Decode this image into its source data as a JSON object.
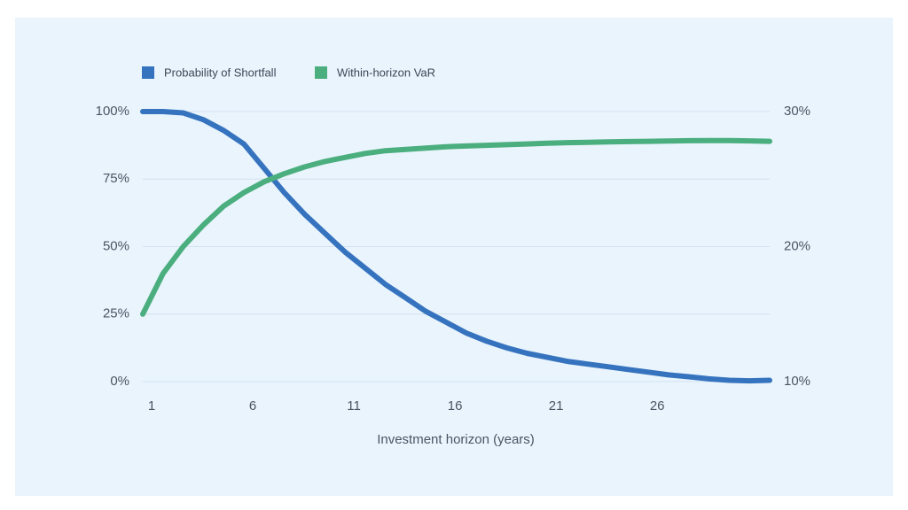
{
  "chart_data": {
    "type": "line",
    "x_label": "Investment horizon (years)",
    "x": [
      1,
      2,
      3,
      4,
      5,
      6,
      7,
      8,
      9,
      10,
      11,
      12,
      13,
      14,
      15,
      16,
      17,
      18,
      19,
      20,
      21,
      22,
      23,
      24,
      25,
      26,
      27,
      28,
      29,
      30,
      31,
      32
    ],
    "xlim": [
      1,
      32
    ],
    "xticks": [
      1,
      6,
      11,
      16,
      21,
      26
    ],
    "ylim": [
      0,
      100
    ],
    "yticks": [
      {
        "value": 0,
        "label": "0%"
      },
      {
        "value": 25,
        "label": "25%"
      },
      {
        "value": 50,
        "label": "50%"
      },
      {
        "value": 75,
        "label": "75%"
      },
      {
        "value": 100,
        "label": "100%"
      }
    ],
    "y2lim": [
      10,
      30
    ],
    "y2ticks": [
      {
        "value": 10,
        "label": "10%"
      },
      {
        "value": 20,
        "label": "20%"
      },
      {
        "value": 30,
        "label": "30%"
      }
    ],
    "grid": true,
    "legend": "top-left",
    "series": [
      {
        "name": "Probability of Shortfall",
        "color": "#3673be",
        "values": [
          100,
          100,
          99.5,
          97,
          93,
          88,
          79,
          70,
          62,
          55,
          48,
          42,
          36,
          31,
          26,
          22,
          18,
          15,
          12.5,
          10.5,
          9,
          7.5,
          6.5,
          5.5,
          4.5,
          3.5,
          2.5,
          1.8,
          1,
          0.5,
          0.3,
          0.5
        ]
      },
      {
        "name": "Within-horizon VaR",
        "color": "#4bae7e",
        "axis": "y2",
        "values": [
          15,
          18,
          20,
          21.6,
          23,
          24,
          24.8,
          25.4,
          25.9,
          26.3,
          26.6,
          26.9,
          27.1,
          27.2,
          27.3,
          27.4,
          27.45,
          27.5,
          27.55,
          27.6,
          27.65,
          27.7,
          27.72,
          27.75,
          27.78,
          27.8,
          27.82,
          27.84,
          27.85,
          27.85,
          27.83,
          27.8
        ]
      }
    ]
  }
}
